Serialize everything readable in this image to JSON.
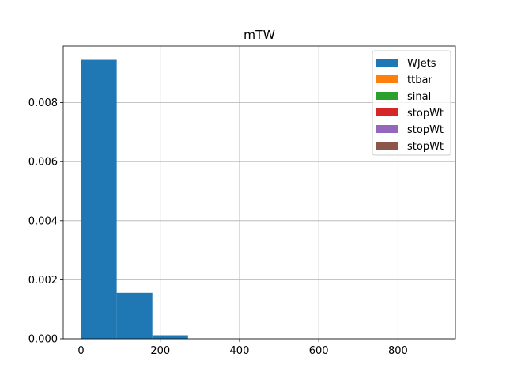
{
  "chart_data": {
    "type": "bar",
    "title": "mTW",
    "xlabel": "",
    "ylabel": "",
    "xlim": [
      -45,
      945
    ],
    "ylim": [
      0,
      0.00992
    ],
    "xticks": [
      0,
      200,
      400,
      600,
      800
    ],
    "yticks": [
      0.0,
      0.002,
      0.004,
      0.006,
      0.008
    ],
    "ytick_labels": [
      "0.000",
      "0.002",
      "0.004",
      "0.006",
      "0.008"
    ],
    "grid": true,
    "legend_position": "top-right",
    "series": [
      {
        "name": "WJets",
        "color": "#1f77b4",
        "bins": [
          {
            "x0": 0,
            "x1": 90,
            "y": 0.00945
          },
          {
            "x0": 90,
            "x1": 180,
            "y": 0.00156
          },
          {
            "x0": 180,
            "x1": 270,
            "y": 0.00012
          }
        ]
      },
      {
        "name": "ttbar",
        "color": "#ff7f0e",
        "bins": []
      },
      {
        "name": "sinal",
        "color": "#2ca02c",
        "bins": []
      },
      {
        "name": "stopWt",
        "color": "#d62728",
        "bins": []
      },
      {
        "name": "stopWt",
        "color": "#9467bd",
        "bins": []
      },
      {
        "name": "stopWt",
        "color": "#8c564b",
        "bins": []
      }
    ]
  }
}
